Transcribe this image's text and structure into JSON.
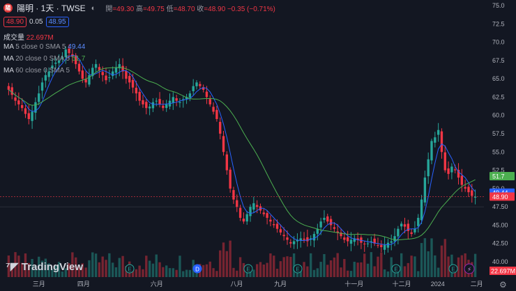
{
  "header": {
    "symbol_badge": "陽",
    "symbol": "陽明 · 1天 · TWSE",
    "ohlc": [
      {
        "k": "開",
        "v": "=49.30"
      },
      {
        "k": "高",
        "v": "=49.75"
      },
      {
        "k": "低",
        "v": "=48.70"
      },
      {
        "k": "收",
        "v": "=48.90"
      },
      {
        "k": "",
        "v": "−0.35 (−0.71%)"
      }
    ],
    "sell_price": "48.90",
    "spread": "0.05",
    "buy_price": "48.95"
  },
  "indicators": {
    "volume_label": "成交量",
    "volume_value": "22.697M",
    "ma5_name": "MA",
    "ma5_params": "5 close 0 SMA 5",
    "ma5_value": "49.44",
    "ma20_name": "MA",
    "ma20_params": "20 close 0 SMA 5",
    "ma20_value": "51.7",
    "ma60_name": "MA",
    "ma60_params": "60 close 0 SMA 5"
  },
  "brand": {
    "name": "TradingView"
  },
  "colors": {
    "up": "#26a69a",
    "down": "#f23645",
    "ma5": "#2962ff",
    "ma20": "#4caf50",
    "background": "#131722"
  },
  "chart_data": {
    "type": "candlestick",
    "y_ticks": [
      "75.0",
      "72.5",
      "70.0",
      "67.5",
      "65.0",
      "62.5",
      "60.0",
      "57.5",
      "55.0",
      "52.5",
      "50.0",
      "47.50",
      "45.00",
      "42.50",
      "40.00"
    ],
    "ylim": [
      40,
      75
    ],
    "x_ticks": [
      "三月",
      "四月",
      "六月",
      "八月",
      "九月",
      "十一月",
      "十二月",
      "2024",
      "二月"
    ],
    "price_labels": [
      {
        "value": 51.7,
        "text": "51.7",
        "color": "#4caf50"
      },
      {
        "value": 49.44,
        "text": "49.44",
        "color": "#2962ff"
      },
      {
        "value": 48.9,
        "text": "48.90",
        "color": "#f23645"
      }
    ],
    "volume_label": {
      "text": "22.697M",
      "color": "#f23645"
    },
    "event_markers": [
      "E",
      "D",
      "E",
      "E",
      "E",
      "E"
    ],
    "close_series": [
      63.5,
      62.8,
      62.0,
      61.5,
      61.0,
      60.2,
      59.5,
      60.5,
      61.8,
      63.0,
      64.5,
      65.5,
      66.0,
      66.8,
      67.2,
      67.5,
      68.0,
      69.0,
      68.5,
      68.0,
      67.0,
      66.0,
      65.0,
      64.5,
      65.5,
      66.5,
      67.0,
      66.2,
      65.5,
      64.8,
      65.2,
      66.0,
      66.5,
      67.0,
      66.0,
      65.0,
      64.5,
      63.8,
      63.0,
      62.0,
      61.5,
      61.0,
      61.2,
      61.8,
      62.0,
      61.5,
      61.0,
      61.5,
      62.0,
      62.5,
      62.0,
      61.8,
      62.2,
      62.5,
      63.0,
      64.0,
      64.5,
      64.0,
      63.5,
      62.5,
      61.5,
      60.5,
      59.5,
      57.5,
      55.0,
      52.5,
      50.0,
      48.5,
      47.5,
      46.0,
      45.5,
      46.5,
      47.5,
      48.0,
      47.5,
      47.0,
      46.5,
      46.0,
      45.5,
      45.0,
      44.5,
      44.0,
      43.5,
      43.0,
      42.5,
      42.8,
      43.0,
      43.2,
      43.0,
      42.8,
      43.2,
      43.8,
      44.5,
      45.5,
      46.0,
      45.5,
      45.0,
      44.5,
      44.0,
      43.5,
      43.0,
      42.8,
      43.0,
      43.2,
      43.0,
      42.6,
      42.4,
      42.5,
      42.8,
      42.5,
      42.2,
      42.0,
      42.3,
      42.6,
      42.8,
      43.5,
      44.5,
      45.2,
      44.8,
      44.2,
      43.8,
      44.5,
      46.0,
      48.5,
      51.5,
      54.0,
      56.5,
      57.0,
      58.0,
      55.0,
      52.5,
      52.0,
      53.0,
      52.5,
      51.5,
      50.5,
      50.0,
      49.5,
      49.0,
      48.9
    ]
  }
}
